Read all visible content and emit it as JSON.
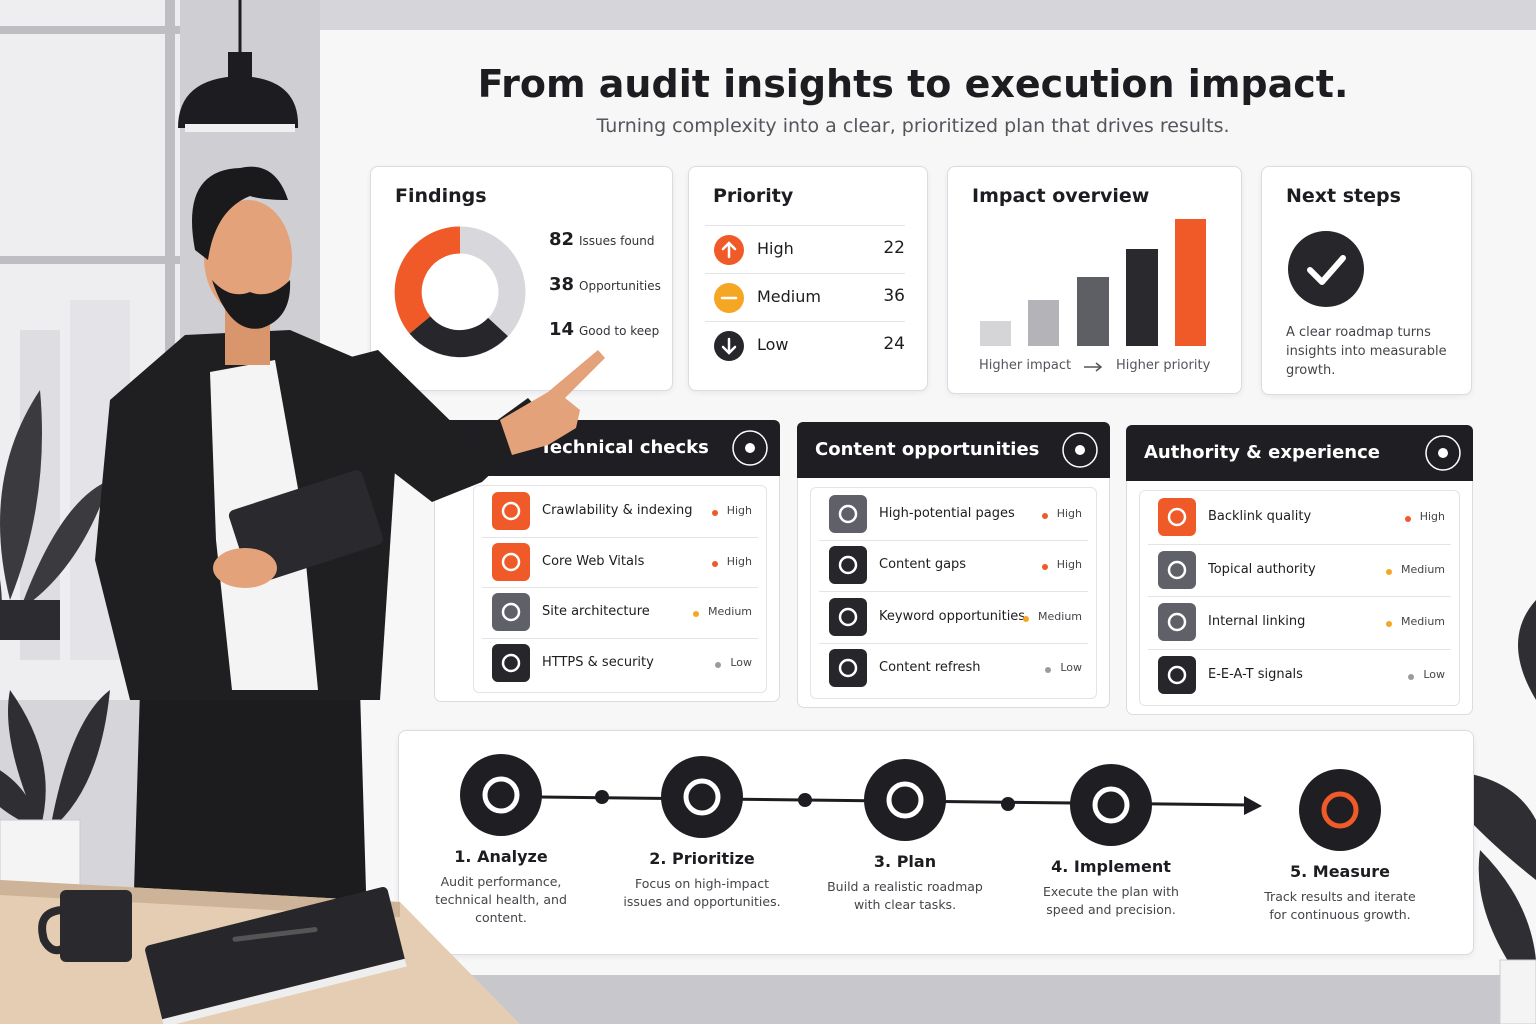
{
  "header": {
    "title": "From audit insights to execution impact.",
    "subtitle": "Turning complexity into a clear, prioritized plan that drives results."
  },
  "findings": {
    "title": "Findings",
    "items": [
      {
        "value": 82,
        "label": "Issues found"
      },
      {
        "value": 38,
        "label": "Opportunities"
      },
      {
        "value": 14,
        "label": "Good to keep"
      }
    ]
  },
  "priority": {
    "title": "Priority",
    "items": [
      {
        "label": "High",
        "value": 22
      },
      {
        "label": "Medium",
        "value": 36
      },
      {
        "label": "Low",
        "value": 24
      }
    ]
  },
  "impact": {
    "title": "Impact overview",
    "label_left": "Higher impact",
    "label_right": "Higher priority"
  },
  "next_steps": {
    "title": "Next steps",
    "text": "A clear roadmap turns insights into measurable growth."
  },
  "panels": [
    {
      "title": "Technical checks",
      "items": [
        {
          "label": "Crawlability & indexing",
          "level": "High"
        },
        {
          "label": "Core Web Vitals",
          "level": "High"
        },
        {
          "label": "Site architecture",
          "level": "Medium"
        },
        {
          "label": "HTTPS & security",
          "level": "Low"
        }
      ]
    },
    {
      "title": "Content opportunities",
      "items": [
        {
          "label": "High-potential pages",
          "level": "High"
        },
        {
          "label": "Content gaps",
          "level": "High"
        },
        {
          "label": "Keyword opportunities",
          "level": "Medium"
        },
        {
          "label": "Content refresh",
          "level": "Low"
        }
      ]
    },
    {
      "title": "Authority & experience",
      "items": [
        {
          "label": "Backlink quality",
          "level": "High"
        },
        {
          "label": "Topical authority",
          "level": "Medium"
        },
        {
          "label": "Internal linking",
          "level": "Medium"
        },
        {
          "label": "E-E-A-T signals",
          "level": "Low"
        }
      ]
    }
  ],
  "steps": [
    {
      "title": "1. Analyze",
      "text": "Audit performance, technical health, and content."
    },
    {
      "title": "2. Prioritize",
      "text": "Focus on high-impact issues and opportunities."
    },
    {
      "title": "3. Plan",
      "text": "Build a realistic roadmap with clear tasks."
    },
    {
      "title": "4. Implement",
      "text": "Execute the plan with speed and precision."
    },
    {
      "title": "5. Measure",
      "text": "Track results and iterate for continuous growth."
    }
  ]
}
